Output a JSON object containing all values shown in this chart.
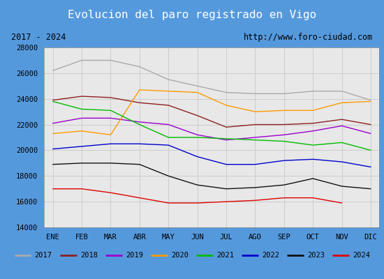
{
  "title": "Evolucion del paro registrado en Vigo",
  "subtitle_left": "2017 - 2024",
  "subtitle_right": "http://www.foro-ciudad.com",
  "months": [
    "ENE",
    "FEB",
    "MAR",
    "ABR",
    "MAY",
    "JUN",
    "JUL",
    "AGO",
    "SEP",
    "OCT",
    "NOV",
    "DIC"
  ],
  "ylim": [
    14000,
    28000
  ],
  "yticks": [
    14000,
    16000,
    18000,
    20000,
    22000,
    24000,
    26000,
    28000
  ],
  "series": {
    "2017": {
      "color": "#aaaaaa",
      "data": [
        26200,
        27000,
        27000,
        26500,
        25500,
        25000,
        24500,
        24400,
        24400,
        24600,
        24600,
        23900
      ]
    },
    "2018": {
      "color": "#8b2020",
      "data": [
        23900,
        24200,
        24100,
        23700,
        23500,
        22700,
        21800,
        22000,
        22000,
        22100,
        22400,
        22000
      ]
    },
    "2019": {
      "color": "#9900cc",
      "data": [
        22100,
        22500,
        22500,
        22200,
        22000,
        21200,
        20800,
        21000,
        21200,
        21500,
        21900,
        21300
      ]
    },
    "2020": {
      "color": "#ff9900",
      "data": [
        21300,
        21500,
        21200,
        24700,
        24600,
        24500,
        23500,
        23000,
        23100,
        23100,
        23700,
        23800
      ]
    },
    "2021": {
      "color": "#00bb00",
      "data": [
        23800,
        23200,
        23100,
        22000,
        21000,
        21000,
        20900,
        20800,
        20700,
        20400,
        20600,
        20000
      ]
    },
    "2022": {
      "color": "#0000cc",
      "data": [
        20100,
        20300,
        20500,
        20500,
        20400,
        19500,
        18900,
        18900,
        19200,
        19300,
        19100,
        18700
      ]
    },
    "2023": {
      "color": "#111111",
      "data": [
        18900,
        19000,
        19000,
        18900,
        18000,
        17300,
        17000,
        17100,
        17300,
        17800,
        17200,
        17000
      ]
    },
    "2024": {
      "color": "#dd0000",
      "data": [
        17000,
        17000,
        16700,
        16300,
        15900,
        15900,
        16000,
        16100,
        16300,
        16300,
        15900,
        null
      ]
    }
  },
  "title_bg_color": "#4488cc",
  "title_text_color": "#ffffff",
  "subtitle_bg_color": "#f0f0f0",
  "plot_bg_color": "#e8e8e8",
  "grid_color": "#cccccc",
  "border_color": "#4488cc",
  "fig_bg_color": "#5599dd"
}
